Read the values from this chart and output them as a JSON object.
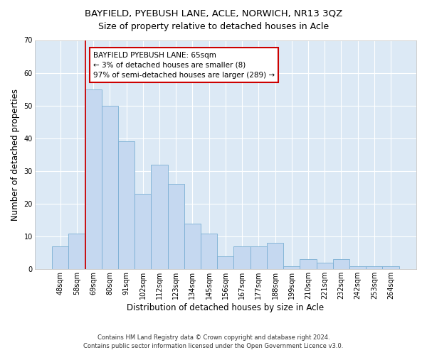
{
  "title1": "BAYFIELD, PYEBUSH LANE, ACLE, NORWICH, NR13 3QZ",
  "title2": "Size of property relative to detached houses in Acle",
  "xlabel": "Distribution of detached houses by size in Acle",
  "ylabel": "Number of detached properties",
  "categories": [
    "48sqm",
    "58sqm",
    "69sqm",
    "80sqm",
    "91sqm",
    "102sqm",
    "112sqm",
    "123sqm",
    "134sqm",
    "145sqm",
    "156sqm",
    "167sqm",
    "177sqm",
    "188sqm",
    "199sqm",
    "210sqm",
    "221sqm",
    "232sqm",
    "242sqm",
    "253sqm",
    "264sqm"
  ],
  "values": [
    7,
    11,
    55,
    50,
    39,
    23,
    32,
    26,
    14,
    11,
    4,
    7,
    7,
    8,
    1,
    3,
    2,
    3,
    1,
    1,
    1
  ],
  "bar_color": "#c5d8f0",
  "bar_edge_color": "#7aafd4",
  "bar_width": 1.0,
  "vline_x": 1.5,
  "vline_color": "#cc0000",
  "ylim": [
    0,
    70
  ],
  "yticks": [
    0,
    10,
    20,
    30,
    40,
    50,
    60,
    70
  ],
  "annotation_text": "BAYFIELD PYEBUSH LANE: 65sqm\n← 3% of detached houses are smaller (8)\n97% of semi-detached houses are larger (289) →",
  "annotation_box_color": "#ffffff",
  "annotation_box_edge": "#cc0000",
  "footer1": "Contains HM Land Registry data © Crown copyright and database right 2024.",
  "footer2": "Contains public sector information licensed under the Open Government Licence v3.0.",
  "bg_color": "#dce9f5",
  "grid_color": "#ffffff",
  "fig_bg_color": "#ffffff",
  "title1_fontsize": 9.5,
  "title2_fontsize": 9,
  "tick_fontsize": 7,
  "ylabel_fontsize": 8.5,
  "xlabel_fontsize": 8.5,
  "footer_fontsize": 6,
  "annot_fontsize": 7.5
}
